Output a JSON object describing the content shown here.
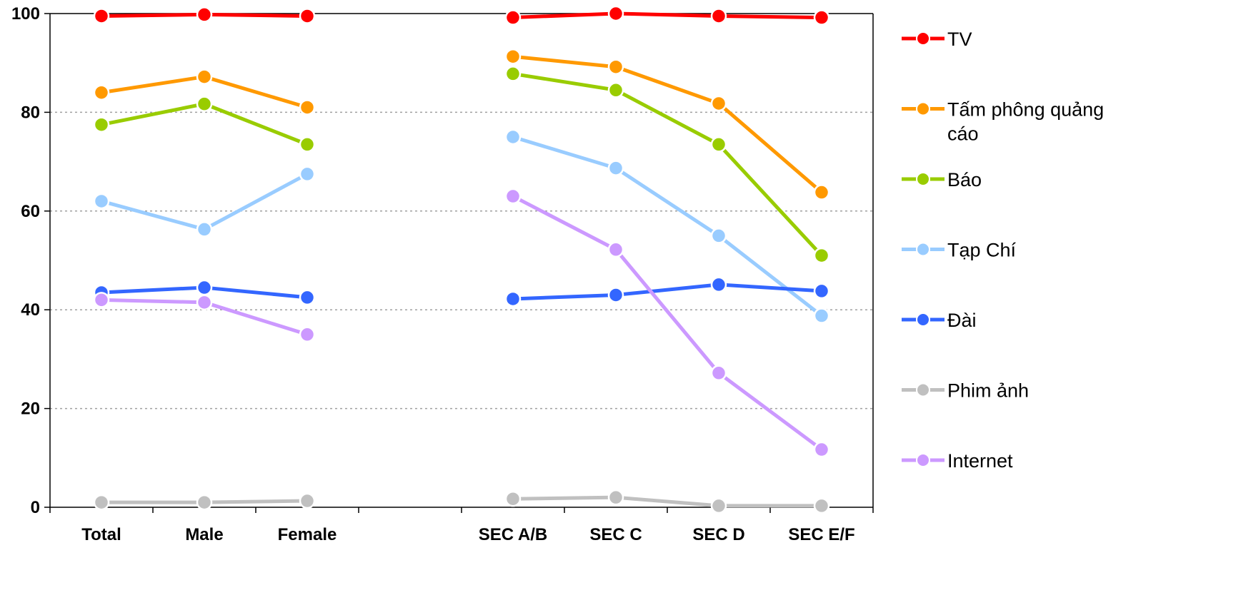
{
  "chart_data": {
    "type": "line",
    "title": "",
    "xlabel": "",
    "ylabel": "",
    "ylim": [
      0,
      100
    ],
    "yticks": [
      "0",
      "20",
      "40",
      "60",
      "80",
      "100"
    ],
    "grid": "horizontal-dotted",
    "legend_position": "right",
    "categories": [
      "Total",
      "Male",
      "Female",
      "",
      "SEC A/B",
      "SEC C",
      "SEC D",
      "SEC E/F"
    ],
    "series": [
      {
        "name": "TV",
        "color": "#ff0000",
        "values": [
          99.5,
          99.8,
          99.5,
          null,
          99.2,
          100,
          99.5,
          99.2
        ]
      },
      {
        "name": "Tấm phông quảng cáo",
        "legend_lines": [
          "Tấm phông quảng",
          "cáo"
        ],
        "color": "#ff9900",
        "values": [
          84,
          87.2,
          81,
          null,
          91.3,
          89.2,
          81.8,
          63.8
        ]
      },
      {
        "name": "Báo",
        "color": "#99cc00",
        "values": [
          77.5,
          81.7,
          73.5,
          null,
          87.8,
          84.5,
          73.5,
          51
        ]
      },
      {
        "name": "Tạp Chí",
        "color": "#99ccff",
        "values": [
          62,
          56.3,
          67.5,
          null,
          75,
          68.7,
          55,
          38.8
        ]
      },
      {
        "name": "Đài",
        "color": "#3366ff",
        "values": [
          43.5,
          44.5,
          42.5,
          null,
          42.2,
          43,
          45.1,
          43.8
        ]
      },
      {
        "name": "Phim ảnh",
        "color": "#c0c0c0",
        "values": [
          1,
          1,
          1.3,
          null,
          1.7,
          2,
          0.3,
          0.3
        ]
      },
      {
        "name": "Internet",
        "color": "#cc99ff",
        "values": [
          42,
          41.5,
          35,
          null,
          63,
          52.2,
          27.2,
          11.7
        ]
      }
    ]
  }
}
